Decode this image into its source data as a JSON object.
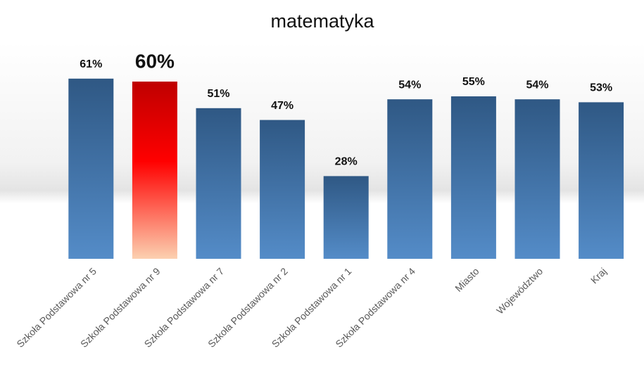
{
  "chart_data": {
    "type": "bar",
    "title": "matematyka",
    "categories": [
      "Szkoła Podstawowa nr 5",
      "Szkoła Podstawowa nr 9",
      "Szkoła Podstawowa nr 7",
      "Szkoła Podstawowa nr 2",
      "Szkoła Podstawowa nr 1",
      "Szkoła Podstawowa nr 4",
      "Miasto",
      "Województwo",
      "Kraj"
    ],
    "values": [
      61,
      60,
      51,
      47,
      28,
      54,
      55,
      54,
      53
    ],
    "value_labels": [
      "61%",
      "60%",
      "51%",
      "47%",
      "28%",
      "54%",
      "55%",
      "54%",
      "53%"
    ],
    "colors": [
      "#3d7cc0",
      "#ff0000",
      "#3d7cc0",
      "#3d7cc0",
      "#3d7cc0",
      "#3d7cc0",
      "#3d7cc0",
      "#3d7cc0",
      "#3d7cc0"
    ]
  }
}
